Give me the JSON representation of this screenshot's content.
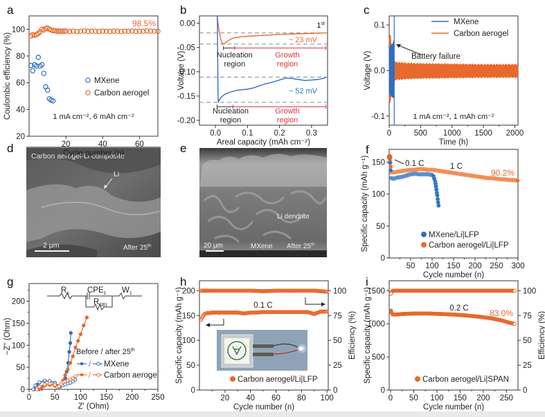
{
  "figure": {
    "panel_labels": [
      "a",
      "b",
      "c",
      "d",
      "e",
      "f",
      "g",
      "h",
      "i"
    ]
  },
  "colors": {
    "mxene": "#2f6fbf",
    "carbon": "#e8692e",
    "growth_red": "#d9363e",
    "dash_gray": "#8a8a8a",
    "black": "#222222"
  },
  "images": {
    "d": {
      "label": "d",
      "title": "Carbon aerogel-Li composite",
      "arrow_label": "Li",
      "scale_bar": "2 μm",
      "caption": "After 25",
      "caption_sup": "th"
    },
    "e": {
      "label": "e",
      "dendrite_label": "Li dendrite",
      "scale_bar": "20 μm",
      "material": "MXene",
      "caption": "After 25",
      "caption_sup": "th"
    }
  },
  "chart_data": [
    {
      "panel": "a",
      "type": "scatter",
      "xlabel": "Cycle number (n)",
      "ylabel": "Coulombic efficiency (%)",
      "xlim": [
        0,
        70
      ],
      "ylim": [
        20,
        110
      ],
      "xticks": [
        20,
        40,
        60
      ],
      "yticks": [
        20,
        40,
        60,
        80,
        100
      ],
      "annotation": "1 mA cm⁻², 6 mAh cm⁻²",
      "value_label": "98.5%",
      "legend": [
        "MXene",
        "Carbon aerogel"
      ],
      "legend_position": "center-right",
      "series": [
        {
          "name": "MXene",
          "marker": "open-circle",
          "x": [
            1,
            2,
            3,
            4,
            5,
            6,
            7,
            8,
            9,
            10,
            11,
            12,
            13
          ],
          "y": [
            73,
            69,
            73.5,
            72.5,
            79,
            72.5,
            73.5,
            67,
            57,
            54.5,
            48,
            47,
            46.5
          ]
        },
        {
          "name": "Carbon aerogel",
          "marker": "open-circle",
          "x": [
            1,
            2,
            3,
            4,
            5,
            6,
            7,
            8,
            9,
            10,
            11,
            12,
            13,
            14,
            15,
            16,
            17,
            18,
            19,
            20,
            22,
            24,
            26,
            28,
            30,
            32,
            34,
            36,
            38,
            40,
            42,
            44,
            46,
            48,
            50,
            52,
            54,
            56,
            58,
            60,
            62,
            64,
            66,
            68,
            70
          ],
          "y": [
            95,
            96,
            95.5,
            96,
            97,
            98,
            100,
            99.5,
            100.5,
            101,
            100,
            99.5,
            99,
            99,
            98.5,
            98.8,
            98.5,
            98.6,
            98.5,
            98.7,
            98.4,
            98.6,
            98.3,
            98.5,
            98.8,
            98.4,
            98.6,
            98.5,
            98.4,
            98.6,
            98.5,
            98.4,
            98.6,
            98.5,
            98.3,
            98.6,
            98.5,
            98.7,
            98.4,
            98.6,
            98.5,
            98.8,
            98.6,
            98.5,
            98.5
          ]
        }
      ]
    },
    {
      "panel": "b",
      "type": "line",
      "xlabel": "Areal capacity (mAh cm⁻²)",
      "ylabel": "Voltage (V)",
      "xlim": [
        -0.05,
        0.35
      ],
      "ylim": [
        -0.21,
        0.015
      ],
      "xticks": [
        0.0,
        0.1,
        0.2,
        0.3
      ],
      "xtick_labels": [
        "0.0",
        "0.1",
        "0.2",
        "0.3"
      ],
      "yticks": [
        0.0,
        -0.05,
        -0.1,
        -0.15,
        -0.2
      ],
      "ytick_labels": [
        "0.00",
        "-0.05",
        "-0.10",
        "-0.15",
        "-0.20"
      ],
      "cycle_label": "1",
      "cycle_sup": "st",
      "dashed_levels": [
        -0.02,
        -0.043,
        -0.111,
        -0.163
      ],
      "annotations": {
        "carbon_overpotential": "~ 23 mV",
        "mxene_overpotential": "~ 52 mV",
        "nucleation": [
          "Nucleation",
          "region"
        ],
        "growth": [
          "Growth",
          "region"
        ]
      },
      "regions": {
        "carbon": {
          "nucleation": [
            0.025,
            0.06
          ],
          "growth": [
            0.06,
            0.345
          ],
          "y": -0.051
        },
        "mxene": {
          "nucleation": [
            0.005,
            0.055
          ],
          "growth": [
            0.055,
            0.345
          ],
          "y": -0.172
        }
      },
      "series": [
        {
          "name": "Carbon aerogel",
          "x": [
            0.005,
            0.01,
            0.015,
            0.02,
            0.025,
            0.03,
            0.04,
            0.05,
            0.06,
            0.08,
            0.1,
            0.15,
            0.2,
            0.25,
            0.3,
            0.345
          ],
          "y": [
            0.015,
            -0.01,
            -0.03,
            -0.04,
            -0.043,
            -0.041,
            -0.036,
            -0.032,
            -0.03,
            -0.028,
            -0.027,
            -0.025,
            -0.023,
            -0.022,
            -0.021,
            -0.02
          ]
        },
        {
          "name": "MXene",
          "x": [
            0.006,
            0.007,
            0.008,
            0.009,
            0.012,
            0.02,
            0.03,
            0.05,
            0.07,
            0.1,
            0.12,
            0.15,
            0.18,
            0.2,
            0.22,
            0.24,
            0.26,
            0.28,
            0.3,
            0.32,
            0.345
          ],
          "y": [
            0.015,
            -0.08,
            -0.14,
            -0.163,
            -0.158,
            -0.151,
            -0.146,
            -0.141,
            -0.138,
            -0.136,
            -0.133,
            -0.126,
            -0.121,
            -0.117,
            -0.113,
            -0.114,
            -0.116,
            -0.118,
            -0.117,
            -0.116,
            -0.112
          ]
        }
      ]
    },
    {
      "panel": "c",
      "type": "line",
      "xlabel": "Time (h)",
      "ylabel": "Voltage (V)",
      "xlim": [
        0,
        2050
      ],
      "ylim": [
        -0.12,
        0.12
      ],
      "xticks": [
        0,
        500,
        1000,
        1500,
        2000
      ],
      "yticks": [
        0.1,
        0.0,
        -0.1
      ],
      "ytick_labels": [
        "0.1",
        "0.0",
        "-0.1"
      ],
      "annotation": "1 mA cm⁻², 1 mAh cm⁻²",
      "failure_label": "Battery failure",
      "legend": [
        "MXene",
        "Carbon aerogel"
      ],
      "legend_position": "top-right",
      "series": [
        {
          "name": "Carbon aerogel",
          "envelope": {
            "x": [
              0,
              20,
              50,
              100,
              300,
              500,
              1000,
              1500,
              2050
            ],
            "upper": [
              0.07,
              0.08,
              0.03,
              0.018,
              0.016,
              0.015,
              0.014,
              0.013,
              0.013
            ],
            "lower": [
              -0.07,
              -0.07,
              -0.03,
              -0.02,
              -0.018,
              -0.017,
              -0.016,
              -0.015,
              -0.015
            ]
          }
        },
        {
          "name": "MXene",
          "envelope": {
            "x": [
              0,
              20,
              60,
              80
            ],
            "upper": [
              0.05,
              0.055,
              0.06,
              0.07
            ],
            "lower": [
              -0.05,
              -0.055,
              -0.06,
              -0.06
            ]
          },
          "failure_spike_x": 80
        }
      ]
    },
    {
      "panel": "f",
      "type": "scatter",
      "xlabel": "Cycle number (n)",
      "ylabel": "Specific capacity (mAh g⁻¹)",
      "xlim": [
        0,
        300
      ],
      "ylim": [
        0,
        170
      ],
      "xticks": [
        50,
        100,
        150,
        200,
        250,
        300
      ],
      "yticks": [
        0,
        50,
        100,
        150
      ],
      "rate_labels": {
        "initial": "0.1 C",
        "main": "1 C"
      },
      "value_label": "90.2%",
      "legend": [
        "MXene/Li|LFP",
        "Carbon aerogel/Li|LFP"
      ],
      "legend_position": "bottom-left",
      "series": [
        {
          "name": "MXene/Li|LFP",
          "x": [
            1,
            5,
            10,
            20,
            30,
            40,
            50,
            60,
            70,
            80,
            90,
            100,
            103,
            105,
            107,
            108,
            109,
            110,
            111,
            112,
            113,
            114,
            115
          ],
          "y": [
            157,
            125,
            124,
            126,
            127,
            129,
            131,
            132,
            131,
            131,
            131,
            130,
            128,
            124,
            120,
            116,
            112,
            107,
            102,
            98,
            92,
            87,
            82
          ]
        },
        {
          "name": "Carbon aerogel/Li|LFP",
          "x": [
            1,
            5,
            10,
            20,
            30,
            40,
            50,
            60,
            70,
            80,
            90,
            100,
            110,
            120,
            130,
            140,
            150,
            160,
            170,
            180,
            190,
            200,
            210,
            220,
            230,
            240,
            250,
            260,
            270,
            280,
            290,
            300
          ],
          "y": [
            158,
            134,
            134,
            135,
            136,
            137,
            138,
            138,
            139,
            139,
            138,
            138,
            137,
            136,
            135,
            134,
            133,
            132,
            131,
            130,
            129,
            128,
            127,
            126,
            125,
            125,
            124,
            123,
            123,
            122,
            122,
            121
          ]
        }
      ]
    },
    {
      "panel": "g",
      "type": "line",
      "xlabel": "Z' (Ohm)",
      "ylabel": "−Z'' (Ohm)",
      "xlim": [
        0,
        250
      ],
      "ylim": [
        0,
        240
      ],
      "xticks": [
        0,
        50,
        100,
        150,
        200,
        250
      ],
      "yticks": [
        0,
        50,
        100,
        150,
        200
      ],
      "circuit": {
        "elements": [
          "R",
          "CPE",
          "W",
          "R"
        ],
        "subscripts": [
          "s",
          "1",
          "1",
          "SEI"
        ]
      },
      "legend_title": "Before / after 25",
      "legend_title_sup": "th",
      "legend": [
        "MXene",
        "Carbon aerogel"
      ],
      "legend_sep": "/",
      "legend_position": "center-right",
      "series": [
        {
          "name": "MXene before",
          "filled": true,
          "x": [
            10,
            15,
            20,
            30,
            40,
            50,
            55,
            60,
            65,
            70,
            73,
            76,
            78,
            80,
            81
          ],
          "y": [
            0,
            10,
            15,
            19,
            19,
            15,
            8,
            6,
            12,
            25,
            40,
            60,
            85,
            105,
            128
          ]
        },
        {
          "name": "MXene after",
          "filled": false,
          "x": [
            8,
            12,
            20,
            30,
            40,
            50,
            55,
            60,
            65,
            70,
            75,
            80,
            85,
            90
          ],
          "y": [
            0,
            9,
            16,
            20,
            19,
            14,
            7,
            6,
            9,
            11,
            13,
            15,
            18,
            22
          ]
        },
        {
          "name": "Carbon aerogel before",
          "filled": true,
          "x": [
            20,
            25,
            30,
            40,
            50,
            55,
            58,
            62,
            66,
            70,
            75,
            80,
            85,
            90,
            95,
            100,
            106,
            112
          ],
          "y": [
            0,
            5,
            8,
            10,
            8,
            4,
            6,
            12,
            20,
            32,
            45,
            60,
            75,
            95,
            110,
            125,
            145,
            163
          ]
        },
        {
          "name": "Carbon aerogel after",
          "filled": false,
          "x": [
            15,
            20,
            30,
            40,
            50,
            55,
            58,
            62,
            66,
            70,
            75,
            80,
            85,
            90
          ],
          "y": [
            0,
            6,
            11,
            13,
            10,
            5,
            7,
            12,
            16,
            18,
            20,
            22,
            25,
            30
          ]
        }
      ]
    },
    {
      "panel": "h",
      "type": "scatter",
      "xlabel": "Cycle number (n)",
      "ylabel": "Specific capacity (mAh g⁻¹)",
      "ylabel_right": "Efficiency (%)",
      "xlim": [
        0,
        101
      ],
      "ylim": [
        0,
        220
      ],
      "ylim_right": [
        0,
        110
      ],
      "xticks": [
        20,
        40,
        60,
        80,
        100
      ],
      "yticks": [
        0,
        50,
        100,
        150,
        200
      ],
      "yticks_right": [
        0,
        25,
        50,
        75,
        100
      ],
      "rate_label": "0.1 C",
      "legend": [
        "Carbon aerogel/Li|LFP"
      ],
      "legend_position": "bottom-right",
      "inset_photo": "pouch cell lighting an LED",
      "series": [
        {
          "name": "Capacity",
          "axis": "left",
          "x": [
            1,
            2,
            3,
            4,
            5,
            6,
            8,
            10,
            15,
            20,
            25,
            30,
            35,
            40,
            45,
            50,
            55,
            60,
            65,
            70,
            75,
            80,
            85,
            90,
            95,
            100
          ],
          "y": [
            141,
            145,
            150,
            153,
            154,
            155,
            155,
            156,
            156,
            156,
            156,
            156,
            154,
            156,
            156,
            157,
            157,
            157,
            157,
            157,
            157,
            157,
            157,
            153,
            158,
            158
          ]
        },
        {
          "name": "Efficiency",
          "axis": "right",
          "x": [
            1,
            5,
            10,
            20,
            30,
            40,
            50,
            60,
            70,
            80,
            90,
            95,
            100
          ],
          "y": [
            100,
            100,
            100,
            100,
            100,
            100,
            99.5,
            100,
            100,
            100,
            100,
            99.5,
            99
          ]
        }
      ]
    },
    {
      "panel": "i",
      "type": "scatter",
      "xlabel": "Cycle number (n)",
      "ylabel": "Specific capacity (mAh g⁻¹)",
      "ylabel_right": "Efficiency (%)",
      "xlim": [
        -3,
        275
      ],
      "ylim": [
        0,
        1650
      ],
      "ylim_right": [
        0,
        110
      ],
      "xticks": [
        0,
        50,
        100,
        150,
        200,
        250
      ],
      "yticks": [
        0,
        500,
        1000,
        1500
      ],
      "yticks_right": [
        0,
        25,
        50,
        75,
        100
      ],
      "rate_label": "0.2 C",
      "value_label": "83.0%",
      "legend": [
        "Carbon aerogel/Li|SPAN"
      ],
      "legend_position": "bottom-right",
      "series": [
        {
          "name": "Capacity",
          "axis": "left",
          "x": [
            1,
            3,
            5,
            10,
            20,
            30,
            40,
            50,
            60,
            70,
            80,
            90,
            100,
            110,
            120,
            130,
            140,
            150,
            160,
            170,
            180,
            190,
            200,
            210,
            220,
            230,
            240,
            250,
            260,
            268
          ],
          "y": [
            1200,
            1150,
            1140,
            1140,
            1145,
            1150,
            1152,
            1155,
            1155,
            1156,
            1155,
            1153,
            1150,
            1148,
            1145,
            1142,
            1138,
            1133,
            1128,
            1122,
            1115,
            1108,
            1100,
            1090,
            1080,
            1065,
            1050,
            1030,
            1010,
            1000
          ]
        },
        {
          "name": "Efficiency",
          "axis": "right",
          "x": [
            1,
            3,
            5,
            10,
            50,
            100,
            150,
            200,
            250,
            268
          ],
          "y": [
            97,
            99,
            100,
            100,
            100,
            100,
            100,
            100,
            100,
            100
          ]
        }
      ]
    }
  ]
}
